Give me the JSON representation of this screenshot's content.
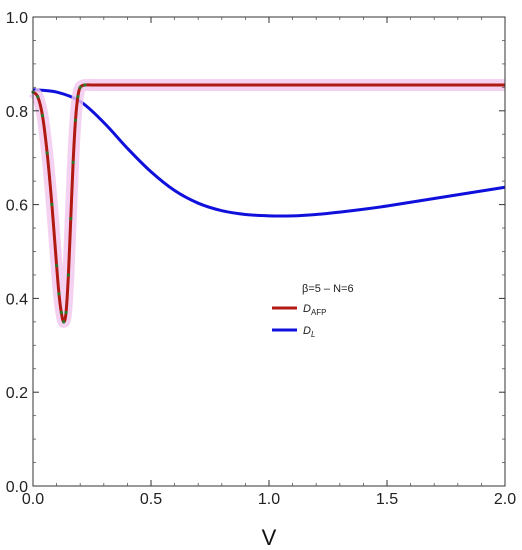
{
  "chart_data": {
    "type": "line",
    "title": "",
    "xlabel": "V",
    "ylabel": "",
    "xlim": [
      0,
      2.0
    ],
    "ylim": [
      0,
      1.0
    ],
    "grid": false,
    "x_ticks": [
      "0.0",
      "0.5",
      "1.0",
      "1.5",
      "2.0"
    ],
    "y_ticks": [
      "0.0",
      "0.2",
      "0.4",
      "0.6",
      "0.8",
      "1.0"
    ],
    "legend": {
      "title": "β=5 – N=6",
      "placement": "center-right",
      "entries": [
        {
          "label_main": "D",
          "label_sub": "AFP",
          "color": "#b01a12"
        },
        {
          "label_main": "D",
          "label_sub": "L",
          "color": "#1010dd"
        }
      ]
    },
    "series": [
      {
        "name": "DAFP",
        "color": "#b01a12",
        "marker_color": "#2a7a2a",
        "x": [
          0.0,
          0.02,
          0.04,
          0.06,
          0.08,
          0.1,
          0.11,
          0.12,
          0.13,
          0.14,
          0.15,
          0.16,
          0.17,
          0.18,
          0.19,
          0.2,
          0.22,
          0.25,
          0.3,
          0.5,
          1.0,
          1.5,
          2.0
        ],
        "y": [
          0.84,
          0.83,
          0.79,
          0.71,
          0.6,
          0.47,
          0.41,
          0.37,
          0.35,
          0.37,
          0.45,
          0.57,
          0.69,
          0.78,
          0.83,
          0.85,
          0.855,
          0.855,
          0.855,
          0.855,
          0.855,
          0.855,
          0.855
        ]
      },
      {
        "name": "DL",
        "color": "#1010dd",
        "x": [
          0.0,
          0.1,
          0.2,
          0.3,
          0.4,
          0.5,
          0.6,
          0.7,
          0.8,
          0.9,
          1.0,
          1.1,
          1.2,
          1.3,
          1.4,
          1.5,
          1.6,
          1.7,
          1.8,
          1.9,
          2.0
        ],
        "y": [
          0.845,
          0.84,
          0.82,
          0.775,
          0.72,
          0.67,
          0.63,
          0.603,
          0.587,
          0.579,
          0.576,
          0.576,
          0.579,
          0.584,
          0.59,
          0.597,
          0.605,
          0.613,
          0.621,
          0.629,
          0.637
        ]
      }
    ]
  }
}
